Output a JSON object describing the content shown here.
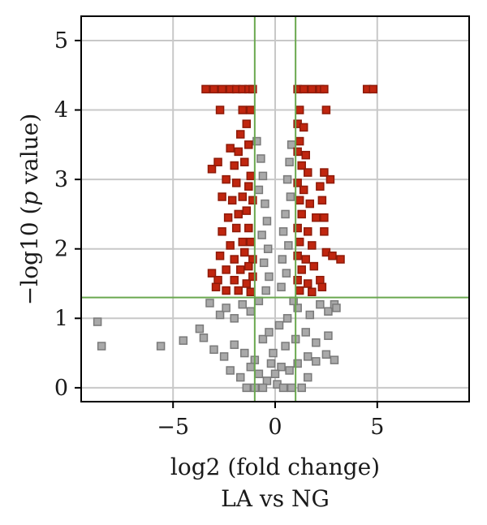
{
  "chart_data": {
    "type": "scatter",
    "xlabel": "log2 (fold change)",
    "ylabel_parts": [
      "−log10 (",
      "p",
      " value)"
    ],
    "subtitle": "LA vs NG",
    "xlim": [
      -9.5,
      9.5
    ],
    "ylim": [
      -0.2,
      5.35
    ],
    "x_ticks": [
      -5,
      0,
      5
    ],
    "x_tick_labels": [
      "−5",
      "0",
      "5"
    ],
    "y_ticks": [
      0,
      1,
      2,
      3,
      4,
      5
    ],
    "y_tick_labels": [
      "0",
      "1",
      "2",
      "3",
      "4",
      "5"
    ],
    "x_gridlines": [
      -5,
      0,
      5
    ],
    "y_gridlines": [
      0,
      1,
      2,
      3,
      4,
      5
    ],
    "threshold_lines": {
      "x": [
        -1,
        1
      ],
      "y": 1.3
    },
    "grid": true,
    "colors": {
      "significant": "#c0260f",
      "significant_edge": "#8e1a08",
      "not_significant": "#a9a9a9",
      "not_significant_edge": "#7a7a7a",
      "threshold": "#6aa84f",
      "grid": "#c8c8c8",
      "frame": "#000000"
    },
    "series": [
      {
        "values": [
          [
            -3.4,
            4.3
          ],
          [
            -3.0,
            4.3
          ],
          [
            -2.6,
            4.3
          ],
          [
            -2.2,
            4.3
          ],
          [
            -1.9,
            4.3
          ],
          [
            -1.6,
            4.3
          ],
          [
            -1.3,
            4.3
          ],
          [
            -1.1,
            4.3
          ],
          [
            1.1,
            4.3
          ],
          [
            1.4,
            4.3
          ],
          [
            1.8,
            4.3
          ],
          [
            2.2,
            4.3
          ],
          [
            2.4,
            4.3
          ],
          [
            4.5,
            4.3
          ],
          [
            4.8,
            4.3
          ],
          [
            -2.7,
            4.0
          ],
          [
            -1.6,
            4.0
          ],
          [
            -1.2,
            4.0
          ],
          [
            1.2,
            4.0
          ],
          [
            2.5,
            4.0
          ],
          [
            -1.4,
            3.8
          ],
          [
            -1.7,
            3.65
          ],
          [
            1.1,
            3.8
          ],
          [
            1.4,
            3.75
          ],
          [
            1.2,
            3.55
          ],
          [
            -2.2,
            3.45
          ],
          [
            -1.8,
            3.4
          ],
          [
            -1.3,
            3.5
          ],
          [
            1.1,
            3.4
          ],
          [
            1.5,
            3.35
          ],
          [
            1.3,
            3.2
          ],
          [
            -3.1,
            3.15
          ],
          [
            -2.8,
            3.25
          ],
          [
            -2.0,
            3.2
          ],
          [
            -1.5,
            3.25
          ],
          [
            -1.2,
            3.05
          ],
          [
            1.6,
            3.1
          ],
          [
            2.4,
            3.1
          ],
          [
            2.7,
            3.0
          ],
          [
            -2.4,
            3.0
          ],
          [
            -1.9,
            2.95
          ],
          [
            -1.3,
            2.9
          ],
          [
            1.1,
            2.95
          ],
          [
            1.4,
            2.85
          ],
          [
            2.2,
            2.9
          ],
          [
            -2.6,
            2.75
          ],
          [
            -2.1,
            2.7
          ],
          [
            -1.6,
            2.75
          ],
          [
            -1.1,
            2.7
          ],
          [
            1.2,
            2.7
          ],
          [
            1.7,
            2.65
          ],
          [
            2.3,
            2.7
          ],
          [
            -1.8,
            2.5
          ],
          [
            -1.4,
            2.55
          ],
          [
            -2.3,
            2.45
          ],
          [
            1.3,
            2.5
          ],
          [
            2.0,
            2.45
          ],
          [
            2.4,
            2.45
          ],
          [
            -1.9,
            2.3
          ],
          [
            -1.3,
            2.3
          ],
          [
            -2.6,
            2.25
          ],
          [
            1.1,
            2.3
          ],
          [
            1.6,
            2.25
          ],
          [
            2.4,
            2.25
          ],
          [
            -1.6,
            2.1
          ],
          [
            -2.2,
            2.05
          ],
          [
            -1.2,
            2.1
          ],
          [
            1.2,
            2.1
          ],
          [
            1.8,
            2.05
          ],
          [
            -2.7,
            1.9
          ],
          [
            -2.0,
            1.85
          ],
          [
            -1.5,
            1.95
          ],
          [
            -1.1,
            1.85
          ],
          [
            1.1,
            1.9
          ],
          [
            1.5,
            1.85
          ],
          [
            2.5,
            1.95
          ],
          [
            2.8,
            1.9
          ],
          [
            3.2,
            1.85
          ],
          [
            -2.4,
            1.7
          ],
          [
            -1.7,
            1.7
          ],
          [
            -1.3,
            1.75
          ],
          [
            1.3,
            1.7
          ],
          [
            1.9,
            1.75
          ],
          [
            -3.1,
            1.65
          ],
          [
            -2.8,
            1.55
          ],
          [
            -2.0,
            1.55
          ],
          [
            -1.4,
            1.5
          ],
          [
            -1.1,
            1.6
          ],
          [
            1.1,
            1.55
          ],
          [
            1.6,
            1.5
          ],
          [
            2.2,
            1.55
          ],
          [
            -2.9,
            1.45
          ],
          [
            -2.4,
            1.4
          ],
          [
            -1.8,
            1.4
          ],
          [
            -1.2,
            1.38
          ],
          [
            1.2,
            1.4
          ],
          [
            1.8,
            1.38
          ],
          [
            2.3,
            1.45
          ]
        ]
      },
      {
        "values": [
          [
            -0.9,
            3.55
          ],
          [
            -0.7,
            3.3
          ],
          [
            -0.6,
            3.05
          ],
          [
            -0.8,
            2.85
          ],
          [
            -0.5,
            2.65
          ],
          [
            -0.4,
            2.4
          ],
          [
            -0.65,
            2.2
          ],
          [
            -0.35,
            2.0
          ],
          [
            -0.55,
            1.8
          ],
          [
            -0.3,
            1.6
          ],
          [
            -0.45,
            1.4
          ],
          [
            0.8,
            3.5
          ],
          [
            0.7,
            3.25
          ],
          [
            0.6,
            3.0
          ],
          [
            0.75,
            2.75
          ],
          [
            0.5,
            2.5
          ],
          [
            0.4,
            2.25
          ],
          [
            0.65,
            2.05
          ],
          [
            0.35,
            1.85
          ],
          [
            0.55,
            1.65
          ],
          [
            0.3,
            1.45
          ],
          [
            -8.7,
            0.95
          ],
          [
            -8.5,
            0.6
          ],
          [
            -5.6,
            0.6
          ],
          [
            -4.5,
            0.68
          ],
          [
            -3.7,
            0.85
          ],
          [
            -3.5,
            0.72
          ],
          [
            -3.2,
            1.22
          ],
          [
            -2.7,
            1.05
          ],
          [
            -2.4,
            1.15
          ],
          [
            -2.0,
            1.0
          ],
          [
            -1.6,
            1.2
          ],
          [
            -1.2,
            1.1
          ],
          [
            -0.8,
            1.25
          ],
          [
            -3.0,
            0.55
          ],
          [
            -2.5,
            0.45
          ],
          [
            -2.0,
            0.62
          ],
          [
            -1.5,
            0.5
          ],
          [
            -1.0,
            0.4
          ],
          [
            -0.6,
            0.7
          ],
          [
            -2.2,
            0.25
          ],
          [
            -1.7,
            0.15
          ],
          [
            -1.2,
            0.3
          ],
          [
            -0.8,
            0.2
          ],
          [
            -0.4,
            0.1
          ],
          [
            -0.2,
            0.35
          ],
          [
            -1.4,
            0.0
          ],
          [
            -1.0,
            0.0
          ],
          [
            -0.6,
            0.0
          ],
          [
            0.1,
            0.05
          ],
          [
            0.4,
            0.0
          ],
          [
            0.8,
            0.0
          ],
          [
            1.3,
            0.0
          ],
          [
            1.6,
            0.15
          ],
          [
            0.3,
            0.3
          ],
          [
            0.7,
            0.25
          ],
          [
            1.1,
            0.35
          ],
          [
            1.6,
            0.45
          ],
          [
            2.0,
            0.38
          ],
          [
            2.5,
            0.48
          ],
          [
            2.9,
            0.4
          ],
          [
            0.5,
            0.6
          ],
          [
            1.0,
            0.7
          ],
          [
            1.5,
            0.8
          ],
          [
            2.0,
            0.65
          ],
          [
            2.6,
            0.75
          ],
          [
            0.6,
            1.0
          ],
          [
            1.1,
            1.15
          ],
          [
            1.7,
            1.05
          ],
          [
            2.2,
            1.2
          ],
          [
            2.6,
            1.1
          ],
          [
            2.9,
            1.2
          ],
          [
            3.0,
            1.15
          ],
          [
            0.9,
            1.25
          ],
          [
            -0.1,
            0.5
          ],
          [
            0.0,
            0.2
          ],
          [
            -0.3,
            0.8
          ],
          [
            0.2,
            0.9
          ]
        ]
      }
    ]
  }
}
